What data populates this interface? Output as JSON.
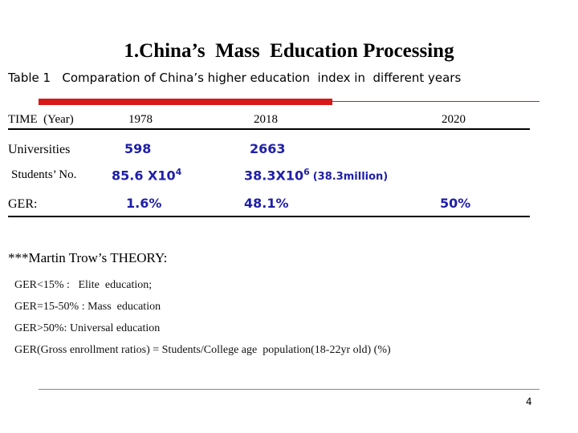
{
  "title": "1.China’s  Mass  Education Processing",
  "caption": "Table 1   Comparation of China’s higher education  index in  different years",
  "table": {
    "header": [
      "TIME  (Year)",
      "1978",
      "2018",
      "2020"
    ],
    "rows": [
      {
        "label": "Universities",
        "cells": [
          {
            "text": "598"
          },
          {
            "text": "2663"
          }
        ]
      },
      {
        "label": "Students’ No.",
        "cells": [
          {
            "text": "85.6 X10",
            "sup": "4"
          },
          {
            "text": "38.3X10",
            "sup": "6",
            "note": "(38.3million)"
          }
        ]
      },
      {
        "label": "GER:",
        "cells": [
          {
            "text": "1.6%"
          },
          {
            "text": "48.1%"
          },
          {
            "text": "50%"
          }
        ]
      }
    ]
  },
  "theory": {
    "heading": "***Martin Trow’s THEORY:",
    "lines": [
      "GER<15% :   Elite  education;",
      "GER=15-50% : Mass  education",
      "GER>50%: Universal education",
      "GER(Gross enrollment ratios) = Students/College age  population(18-22yr old) (%)"
    ]
  },
  "page_number": "4"
}
